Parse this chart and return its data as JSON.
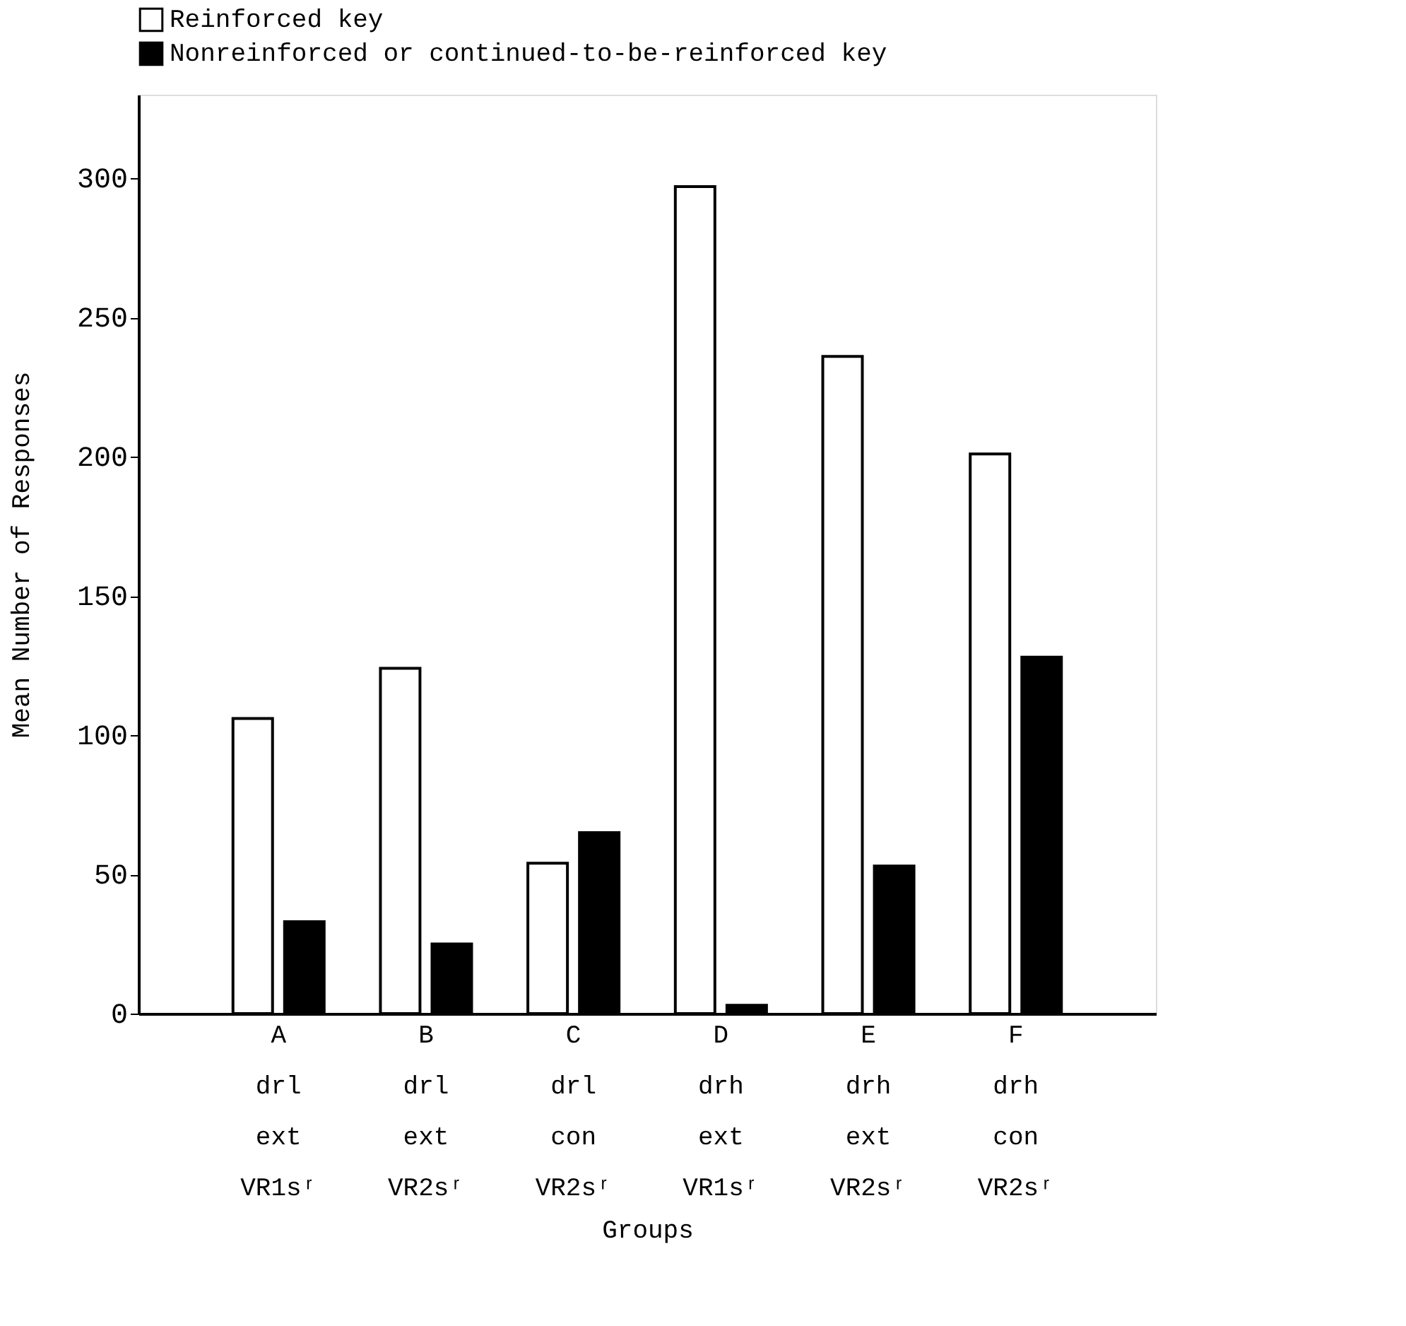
{
  "chart_data": {
    "type": "bar",
    "xlabel": "Groups",
    "ylabel": "Mean Number of Responses",
    "categories": [
      "A\ndrl\next\nVR1sʳ",
      "B\ndrl\next\nVR2sʳ",
      "C\ndrl\ncon\nVR2sʳ",
      "D\ndrh\next\nVR1sʳ",
      "E\ndrh\next\nVR2sʳ",
      "F\ndrh\ncon\nVR2sʳ"
    ],
    "series": [
      {
        "name": "Reinforced key",
        "color": "#ffffff",
        "values": [
          106,
          124,
          54,
          297,
          236,
          201
        ]
      },
      {
        "name": "Nonreinforced or continued-to-be-reinforced key",
        "color": "#000000",
        "values": [
          33,
          25,
          65,
          3,
          53,
          128
        ]
      }
    ],
    "ylim": [
      0,
      330
    ],
    "yticks": [
      0,
      50,
      100,
      150,
      200,
      250,
      300
    ],
    "grid": false,
    "legend": "top"
  }
}
